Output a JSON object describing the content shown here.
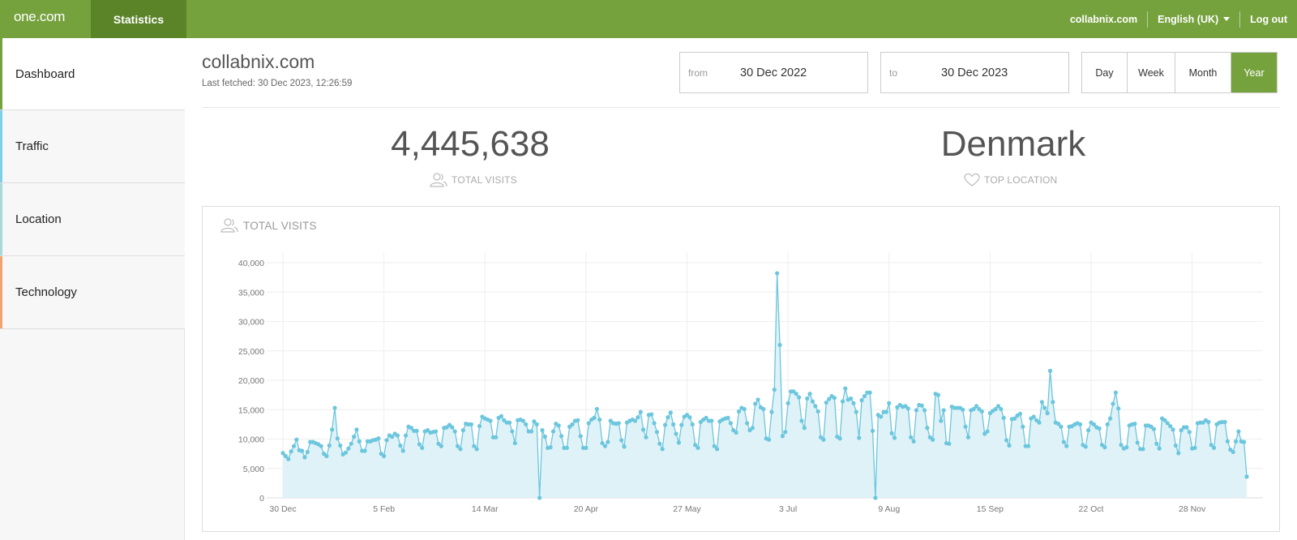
{
  "topbar": {
    "logo": "one.com",
    "tab": "Statistics",
    "site": "collabnix.com",
    "language": "English (UK)",
    "logout": "Log out"
  },
  "sidebar": {
    "items": [
      {
        "label": "Dashboard",
        "accent": "#76a23e"
      },
      {
        "label": "Traffic",
        "accent": "#7fcde6"
      },
      {
        "label": "Location",
        "accent": "#a9d8d8"
      },
      {
        "label": "Technology",
        "accent": "#f0a36e"
      }
    ]
  },
  "header": {
    "title": "collabnix.com",
    "last_fetched": "Last fetched: 30 Dec 2023, 12:26:59"
  },
  "range": {
    "from_label": "from",
    "from_value": "30 Dec 2022",
    "to_label": "to",
    "to_value": "30 Dec 2023"
  },
  "periods": [
    "Day",
    "Week",
    "Month",
    "Year"
  ],
  "active_period": "Year",
  "stats": {
    "total_visits_value": "4,445,638",
    "total_visits_label": "TOTAL VISITS",
    "top_location_value": "Denmark",
    "top_location_label": "TOP LOCATION"
  },
  "panel": {
    "title": "TOTAL VISITS"
  },
  "chart_data": {
    "type": "area",
    "ylim": [
      0,
      40000
    ],
    "yticks": [
      "0",
      "5,000",
      "10,000",
      "15,000",
      "20,000",
      "25,000",
      "30,000",
      "35,000",
      "40,000"
    ],
    "x_ticks": [
      {
        "label": "30 Dec",
        "day": 0
      },
      {
        "label": "5 Feb",
        "day": 37
      },
      {
        "label": "14 Mar",
        "day": 74
      },
      {
        "label": "20 Apr",
        "day": 111
      },
      {
        "label": "27 May",
        "day": 148
      },
      {
        "label": "3 Jul",
        "day": 185
      },
      {
        "label": "9 Aug",
        "day": 222
      },
      {
        "label": "15 Sep",
        "day": 259
      },
      {
        "label": "22 Oct",
        "day": 296
      },
      {
        "label": "28 Nov",
        "day": 333
      }
    ],
    "grid": true,
    "color": "#6cc6dd",
    "fill": "#dff2f8",
    "values": [
      7600,
      7100,
      6600,
      7900,
      8800,
      9900,
      8100,
      8000,
      6900,
      7800,
      9500,
      9500,
      9300,
      9100,
      8800,
      7500,
      7100,
      8900,
      11600,
      15300,
      10100,
      8900,
      7400,
      7700,
      8400,
      9200,
      10400,
      11600,
      9600,
      8000,
      8000,
      9600,
      9600,
      9800,
      9900,
      10100,
      7500,
      7100,
      9800,
      10600,
      10400,
      10900,
      10600,
      8900,
      8000,
      10600,
      12100,
      11900,
      11400,
      11400,
      9100,
      8500,
      11300,
      11500,
      11100,
      11200,
      11300,
      9200,
      8800,
      11900,
      12000,
      12400,
      12000,
      11300,
      8800,
      8300,
      11500,
      12600,
      12500,
      12500,
      8800,
      8300,
      12200,
      13800,
      13500,
      13300,
      13100,
      10300,
      10300,
      13600,
      13900,
      13200,
      12800,
      12800,
      11300,
      9300,
      13200,
      13300,
      13100,
      12500,
      11300,
      11300,
      13000,
      12500,
      0,
      11500,
      10400,
      8500,
      8600,
      11300,
      12600,
      12300,
      10500,
      8500,
      8500,
      12100,
      12500,
      13100,
      13200,
      10500,
      8500,
      8500,
      12700,
      13300,
      13600,
      15100,
      13300,
      9300,
      8800,
      9500,
      13100,
      12700,
      12600,
      12700,
      9800,
      8700,
      12800,
      13100,
      13300,
      13100,
      13700,
      14600,
      11600,
      10300,
      14100,
      14200,
      12700,
      11200,
      9200,
      8300,
      12400,
      13700,
      14500,
      12500,
      10900,
      9400,
      12400,
      13800,
      14100,
      13700,
      12500,
      9000,
      8500,
      12900,
      13300,
      13600,
      13100,
      13100,
      8800,
      8300,
      13000,
      13300,
      13500,
      13600,
      12700,
      11500,
      11100,
      14700,
      15300,
      15100,
      12700,
      11500,
      11900,
      16000,
      16700,
      15400,
      15100,
      10100,
      9900,
      14600,
      18400,
      38200,
      26000,
      10500,
      11200,
      16100,
      18100,
      18100,
      17700,
      17100,
      13100,
      11900,
      16900,
      17700,
      16400,
      15600,
      14700,
      10300,
      9900,
      16200,
      16800,
      17300,
      17000,
      10400,
      10100,
      16400,
      18600,
      16700,
      16900,
      16100,
      14600,
      10200,
      16600,
      17300,
      17900,
      17900,
      11400,
      0,
      14100,
      13800,
      14600,
      14600,
      16100,
      11000,
      10200,
      15400,
      15800,
      15500,
      15600,
      15200,
      10300,
      9600,
      14900,
      15800,
      15700,
      14900,
      11900,
      10300,
      9900,
      17700,
      17500,
      13100,
      14900,
      9300,
      9200,
      15500,
      15300,
      15300,
      15300,
      15000,
      12100,
      10300,
      14900,
      15100,
      15600,
      15100,
      14700,
      10900,
      11300,
      14400,
      14800,
      15100,
      15600,
      15100,
      13600,
      9800,
      8900,
      13400,
      13500,
      14000,
      14300,
      12100,
      8800,
      8800,
      13500,
      13800,
      13200,
      12800,
      16300,
      15300,
      14400,
      21600,
      16300,
      12800,
      12600,
      12100,
      9500,
      8800,
      12100,
      12200,
      12500,
      12700,
      12500,
      9000,
      8700,
      11500,
      12800,
      12500,
      12000,
      11800,
      9000,
      8600,
      12500,
      13500,
      16000,
      17900,
      15200,
      9000,
      8400,
      8600,
      12300,
      12500,
      12600,
      9400,
      8300,
      8300,
      12300,
      12300,
      12100,
      11700,
      9200,
      8400,
      13500,
      13200,
      12700,
      12200,
      11600,
      8900,
      7600,
      11500,
      12000,
      12000,
      11200,
      8400,
      8500,
      12700,
      12800,
      12800,
      13200,
      12900,
      9000,
      8500,
      12500,
      12800,
      12900,
      12900,
      9600,
      8200,
      7800,
      9600,
      11300,
      9600,
      9500,
      3600
    ]
  }
}
